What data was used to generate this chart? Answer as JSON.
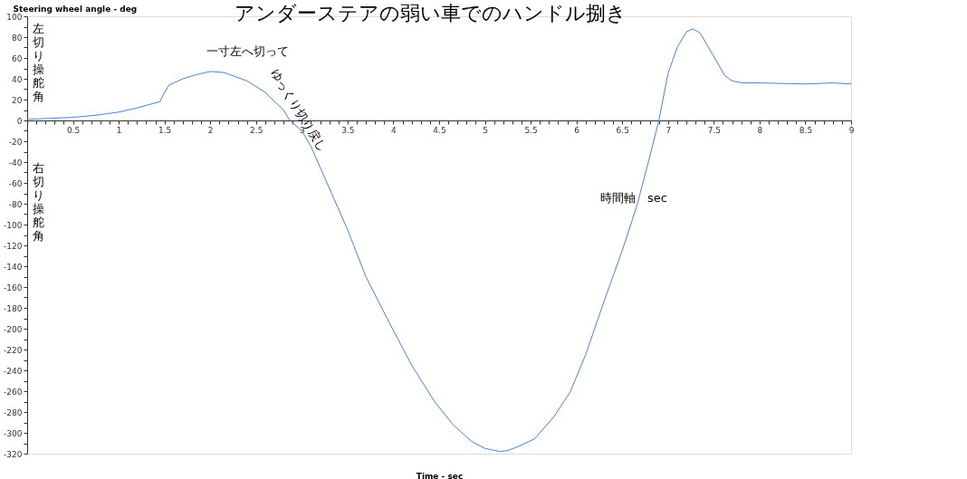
{
  "chart_data": {
    "type": "line",
    "title": "アンダーステアの弱い車でのハンドル捌き",
    "xlabel": "Time - sec",
    "ylabel": "Steering wheel angle - deg",
    "annotations": [
      "左切り操舵角",
      "右切り操舵角",
      "一寸左へ切って",
      "ゆっくり切り戻し",
      "時間軸　sec"
    ],
    "x": [
      0,
      0.25,
      0.5,
      0.75,
      1,
      1.2,
      1.45,
      1.5,
      1.55,
      1.7,
      1.85,
      2,
      2.15,
      2.4,
      2.6,
      2.8,
      2.87,
      3,
      3.1,
      3.2,
      3.35,
      3.5,
      3.7,
      3.96,
      4.2,
      4.45,
      4.65,
      4.85,
      5,
      5.17,
      5.25,
      5.34,
      5.54,
      5.75,
      5.93,
      6.1,
      6.3,
      6.5,
      6.66,
      6.8,
      6.9,
      7,
      7.1,
      7.2,
      7.27,
      7.35,
      7.49,
      7.62,
      7.7,
      7.81,
      8,
      8.5,
      8.8,
      9
    ],
    "series": [
      {
        "color": "#4a7fdc",
        "values": [
          1,
          2,
          3,
          5,
          8,
          12,
          18,
          27,
          34,
          40,
          44,
          47,
          46,
          38,
          27,
          10,
          0,
          -10,
          -25,
          -45,
          -75,
          -105,
          -150,
          -195,
          -235,
          -270,
          -292,
          -308,
          -315,
          -318,
          -317,
          -314,
          -306,
          -285,
          -261,
          -225,
          -174,
          -125,
          -82,
          -35,
          0,
          45,
          70,
          85,
          88,
          84,
          63,
          43,
          38,
          36,
          36,
          35,
          36,
          35
        ]
      }
    ],
    "xlim": [
      0,
      9
    ],
    "xticks": [
      {
        "value": 0.1,
        "label": null
      },
      {
        "value": 0.2,
        "label": null
      },
      {
        "value": 0.3,
        "label": null
      },
      {
        "value": 0.4,
        "label": null
      },
      0.5,
      {
        "value": 0.6,
        "label": null
      },
      {
        "value": 0.7,
        "label": null
      },
      {
        "value": 0.8,
        "label": null
      },
      {
        "value": 0.9,
        "label": null
      },
      1,
      {
        "value": 1.1,
        "label": null
      },
      {
        "value": 1.2,
        "label": null
      },
      {
        "value": 1.3,
        "label": null
      },
      {
        "value": 1.4,
        "label": null
      },
      1.5,
      {
        "value": 1.6,
        "label": null
      },
      {
        "value": 1.7,
        "label": null
      },
      {
        "value": 1.8,
        "label": null
      },
      {
        "value": 1.9,
        "label": null
      },
      2,
      {
        "value": 2.1,
        "label": null
      },
      {
        "value": 2.2,
        "label": null
      },
      {
        "value": 2.3,
        "label": null
      },
      {
        "value": 2.4,
        "label": null
      },
      2.5,
      {
        "value": 2.6,
        "label": null
      },
      {
        "value": 2.7,
        "label": null
      },
      {
        "value": 2.8,
        "label": null
      },
      {
        "value": 2.9,
        "label": null
      },
      3,
      {
        "value": 3.1,
        "label": null
      },
      {
        "value": 3.2,
        "label": null
      },
      {
        "value": 3.3,
        "label": null
      },
      {
        "value": 3.4,
        "label": null
      },
      3.5,
      {
        "value": 3.6,
        "label": null
      },
      {
        "value": 3.7,
        "label": null
      },
      {
        "value": 3.8,
        "label": null
      },
      {
        "value": 3.9,
        "label": null
      },
      4,
      {
        "value": 4.1,
        "label": null
      },
      {
        "value": 4.2,
        "label": null
      },
      {
        "value": 4.3,
        "label": null
      },
      {
        "value": 4.4,
        "label": null
      },
      4.5,
      {
        "value": 4.6,
        "label": null
      },
      {
        "value": 4.7,
        "label": null
      },
      {
        "value": 4.8,
        "label": null
      },
      {
        "value": 4.9,
        "label": null
      },
      5,
      {
        "value": 5.1,
        "label": null
      },
      {
        "value": 5.2,
        "label": null
      },
      {
        "value": 5.3,
        "label": null
      },
      {
        "value": 5.4,
        "label": null
      },
      5.5,
      {
        "value": 5.6,
        "label": null
      },
      {
        "value": 5.7,
        "label": null
      },
      {
        "value": 5.8,
        "label": null
      },
      {
        "value": 5.9,
        "label": null
      },
      6,
      {
        "value": 6.1,
        "label": null
      },
      {
        "value": 6.2,
        "label": null
      },
      {
        "value": 6.3,
        "label": null
      },
      {
        "value": 6.4,
        "label": null
      },
      6.5,
      {
        "value": 6.6,
        "label": null
      },
      {
        "value": 6.7,
        "label": null
      },
      {
        "value": 6.8,
        "label": null
      },
      {
        "value": 6.9,
        "label": null
      },
      7,
      {
        "value": 7.1,
        "label": null
      },
      {
        "value": 7.2,
        "label": null
      },
      {
        "value": 7.3,
        "label": null
      },
      {
        "value": 7.4,
        "label": null
      },
      7.5,
      {
        "value": 7.6,
        "label": null
      },
      {
        "value": 7.7,
        "label": null
      },
      {
        "value": 7.8,
        "label": null
      },
      {
        "value": 7.9,
        "label": null
      },
      8,
      {
        "value": 8.1,
        "label": null
      },
      {
        "value": 8.2,
        "label": null
      },
      {
        "value": 8.3,
        "label": null
      },
      {
        "value": 8.4,
        "label": null
      },
      8.5,
      {
        "value": 8.6,
        "label": null
      },
      {
        "value": 8.7,
        "label": null
      },
      {
        "value": 8.8,
        "label": null
      },
      {
        "value": 8.9,
        "label": null
      },
      9
    ],
    "ylim": [
      -320,
      100
    ],
    "yticks": [
      -320,
      {
        "value": -310,
        "label": null
      },
      -300,
      {
        "value": -290,
        "label": null
      },
      -280,
      {
        "value": -270,
        "label": null
      },
      -260,
      {
        "value": -250,
        "label": null
      },
      -240,
      {
        "value": -230,
        "label": null
      },
      -220,
      {
        "value": -210,
        "label": null
      },
      -200,
      {
        "value": -190,
        "label": null
      },
      -180,
      {
        "value": -170,
        "label": null
      },
      -160,
      {
        "value": -150,
        "label": null
      },
      -140,
      {
        "value": -130,
        "label": null
      },
      -120,
      {
        "value": -110,
        "label": null
      },
      -100,
      {
        "value": -90,
        "label": null
      },
      -80,
      {
        "value": -70,
        "label": null
      },
      -60,
      {
        "value": -50,
        "label": null
      },
      -40,
      {
        "value": -30,
        "label": null
      },
      -20,
      {
        "value": -10,
        "label": null
      },
      0,
      {
        "value": 10,
        "label": null
      },
      20,
      {
        "value": 30,
        "label": null
      },
      40,
      {
        "value": 50,
        "label": null
      },
      60,
      {
        "value": 70,
        "label": null
      },
      80,
      {
        "value": 90,
        "label": null
      },
      100
    ],
    "grid": false,
    "marker": "none",
    "line_style": "solid"
  }
}
